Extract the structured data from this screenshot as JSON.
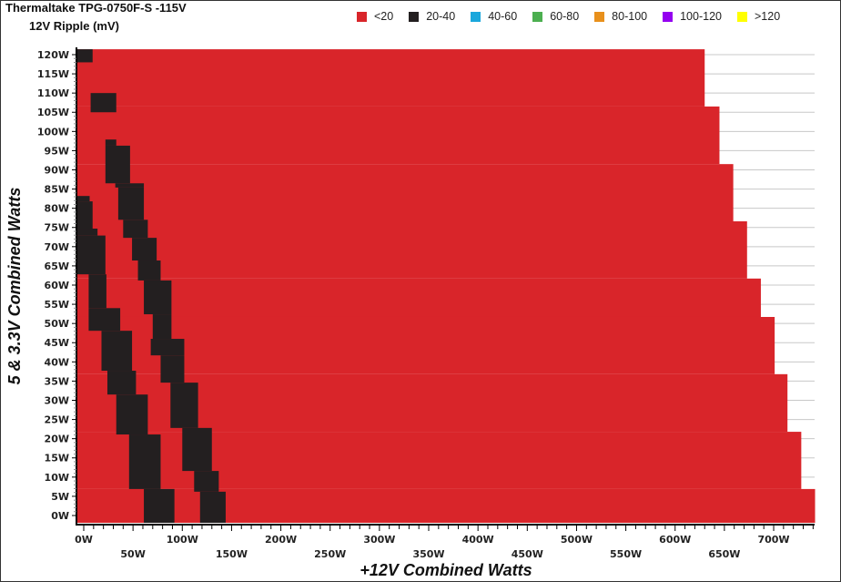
{
  "chart_data": {
    "type": "heatmap",
    "title": "Thermaltake TPG-0750F-S -115V",
    "subtitle": "12V Ripple (mV)",
    "xlabel": "+12V Combined Watts",
    "ylabel": "5 & 3.3V Combined Watts",
    "xlim": [
      0,
      700
    ],
    "ylim": [
      0,
      120
    ],
    "x_ticks": [
      "0W",
      "50W",
      "100W",
      "150W",
      "200W",
      "250W",
      "300W",
      "350W",
      "400W",
      "450W",
      "500W",
      "550W",
      "600W",
      "650W",
      "700W"
    ],
    "y_ticks": [
      "0W",
      "5W",
      "10W",
      "15W",
      "20W",
      "25W",
      "30W",
      "35W",
      "40W",
      "45W",
      "50W",
      "55W",
      "60W",
      "65W",
      "70W",
      "75W",
      "80W",
      "85W",
      "90W",
      "95W",
      "100W",
      "105W",
      "110W",
      "115W",
      "120W"
    ],
    "grid": "horizontal",
    "legend_position": "top",
    "legend": [
      {
        "label": "<20",
        "color": "#d9252a"
      },
      {
        "label": "20-40",
        "color": "#231f20"
      },
      {
        "label": "40-60",
        "color": "#1aa7dc"
      },
      {
        "label": "60-80",
        "color": "#4caf50"
      },
      {
        "label": "80-100",
        "color": "#e8901c"
      },
      {
        "label": "100-120",
        "color": "#9400f0"
      },
      {
        "label": ">120",
        "color": "#ffff00"
      }
    ],
    "red_region_rows_[y_min_W,y_max_W,x_max_W]": [
      [
        106.5,
        121.4,
        630
      ],
      [
        91.5,
        106.5,
        645
      ],
      [
        76.6,
        91.5,
        659
      ],
      [
        61.7,
        76.6,
        673
      ],
      [
        51.7,
        61.7,
        687
      ],
      [
        36.8,
        51.7,
        701
      ],
      [
        21.8,
        36.8,
        714
      ],
      [
        6.9,
        21.8,
        728
      ],
      [
        -1.9,
        6.9,
        742
      ]
    ],
    "black_20_40_cells_[y_min_W,y_max_W,x_min_W,x_max_W]": [
      [
        118,
        121.4,
        -7,
        9
      ],
      [
        105,
        110,
        7,
        33
      ],
      [
        96.3,
        97.9,
        22,
        33
      ],
      [
        86.5,
        96.3,
        22,
        47
      ],
      [
        85.4,
        86.5,
        32,
        61
      ],
      [
        77,
        85.4,
        35,
        61
      ],
      [
        72.3,
        77,
        40,
        65
      ],
      [
        66.4,
        72.3,
        49,
        74
      ],
      [
        61.2,
        66.4,
        55,
        78
      ],
      [
        52.4,
        61.2,
        61,
        89
      ],
      [
        46,
        52.4,
        70,
        89
      ],
      [
        41.7,
        46,
        68,
        102
      ],
      [
        34.6,
        41.7,
        78,
        102
      ],
      [
        22.8,
        34.6,
        88,
        116
      ],
      [
        11.6,
        22.8,
        100,
        130
      ],
      [
        6.2,
        11.6,
        112,
        137
      ],
      [
        -1.9,
        6.2,
        118,
        144
      ],
      [
        81.8,
        83.2,
        -7,
        6
      ],
      [
        74.7,
        81.8,
        -7,
        9
      ],
      [
        72.9,
        74.7,
        -7,
        14
      ],
      [
        62.8,
        72.9,
        -7,
        22
      ],
      [
        54,
        62.8,
        5,
        23
      ],
      [
        48.1,
        54,
        5,
        37
      ],
      [
        37.7,
        48.1,
        18,
        49
      ],
      [
        31.5,
        37.7,
        24,
        53
      ],
      [
        21.1,
        31.5,
        33,
        65
      ],
      [
        6.9,
        21.1,
        46,
        78
      ],
      [
        -1.9,
        6.9,
        61,
        92
      ]
    ]
  }
}
